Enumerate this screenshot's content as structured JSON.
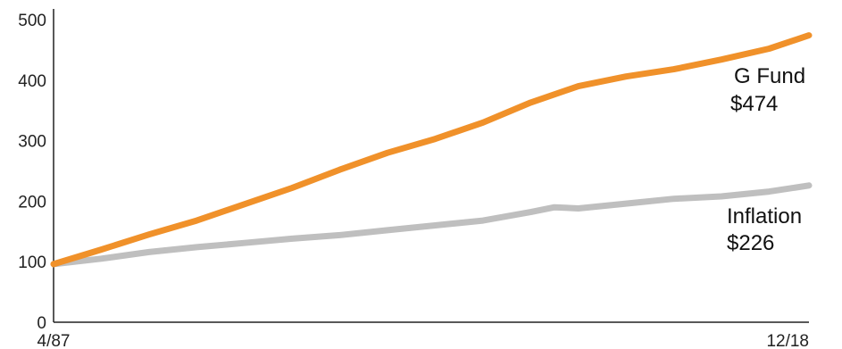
{
  "chart_data": {
    "type": "line",
    "x_start_label": "4/87",
    "x_end_label": "12/18",
    "yticks": [
      0,
      100,
      200,
      300,
      400,
      500
    ],
    "ylim": [
      0,
      500
    ],
    "grid": false,
    "series": [
      {
        "name": "G Fund",
        "end_label": "$474",
        "color": "#f0912a",
        "x": [
          "4/87",
          "4/89",
          "4/91",
          "4/93",
          "4/95",
          "4/97",
          "4/99",
          "4/01",
          "4/03",
          "4/05",
          "4/07",
          "4/09",
          "4/11",
          "4/13",
          "4/15",
          "4/17",
          "12/18"
        ],
        "values": [
          96,
          120,
          145,
          168,
          195,
          222,
          252,
          280,
          303,
          330,
          363,
          390,
          406,
          418,
          434,
          452,
          474
        ]
      },
      {
        "name": "Inflation",
        "end_label": "$226",
        "color": "#bfbfbf",
        "x": [
          "4/87",
          "4/89",
          "4/91",
          "4/93",
          "4/95",
          "4/97",
          "4/99",
          "4/01",
          "4/03",
          "4/05",
          "4/07",
          "4/08",
          "4/09",
          "4/11",
          "4/13",
          "4/15",
          "4/17",
          "12/18"
        ],
        "values": [
          96,
          105,
          116,
          124,
          131,
          138,
          144,
          152,
          160,
          168,
          182,
          190,
          188,
          196,
          204,
          208,
          216,
          226
        ]
      }
    ]
  }
}
